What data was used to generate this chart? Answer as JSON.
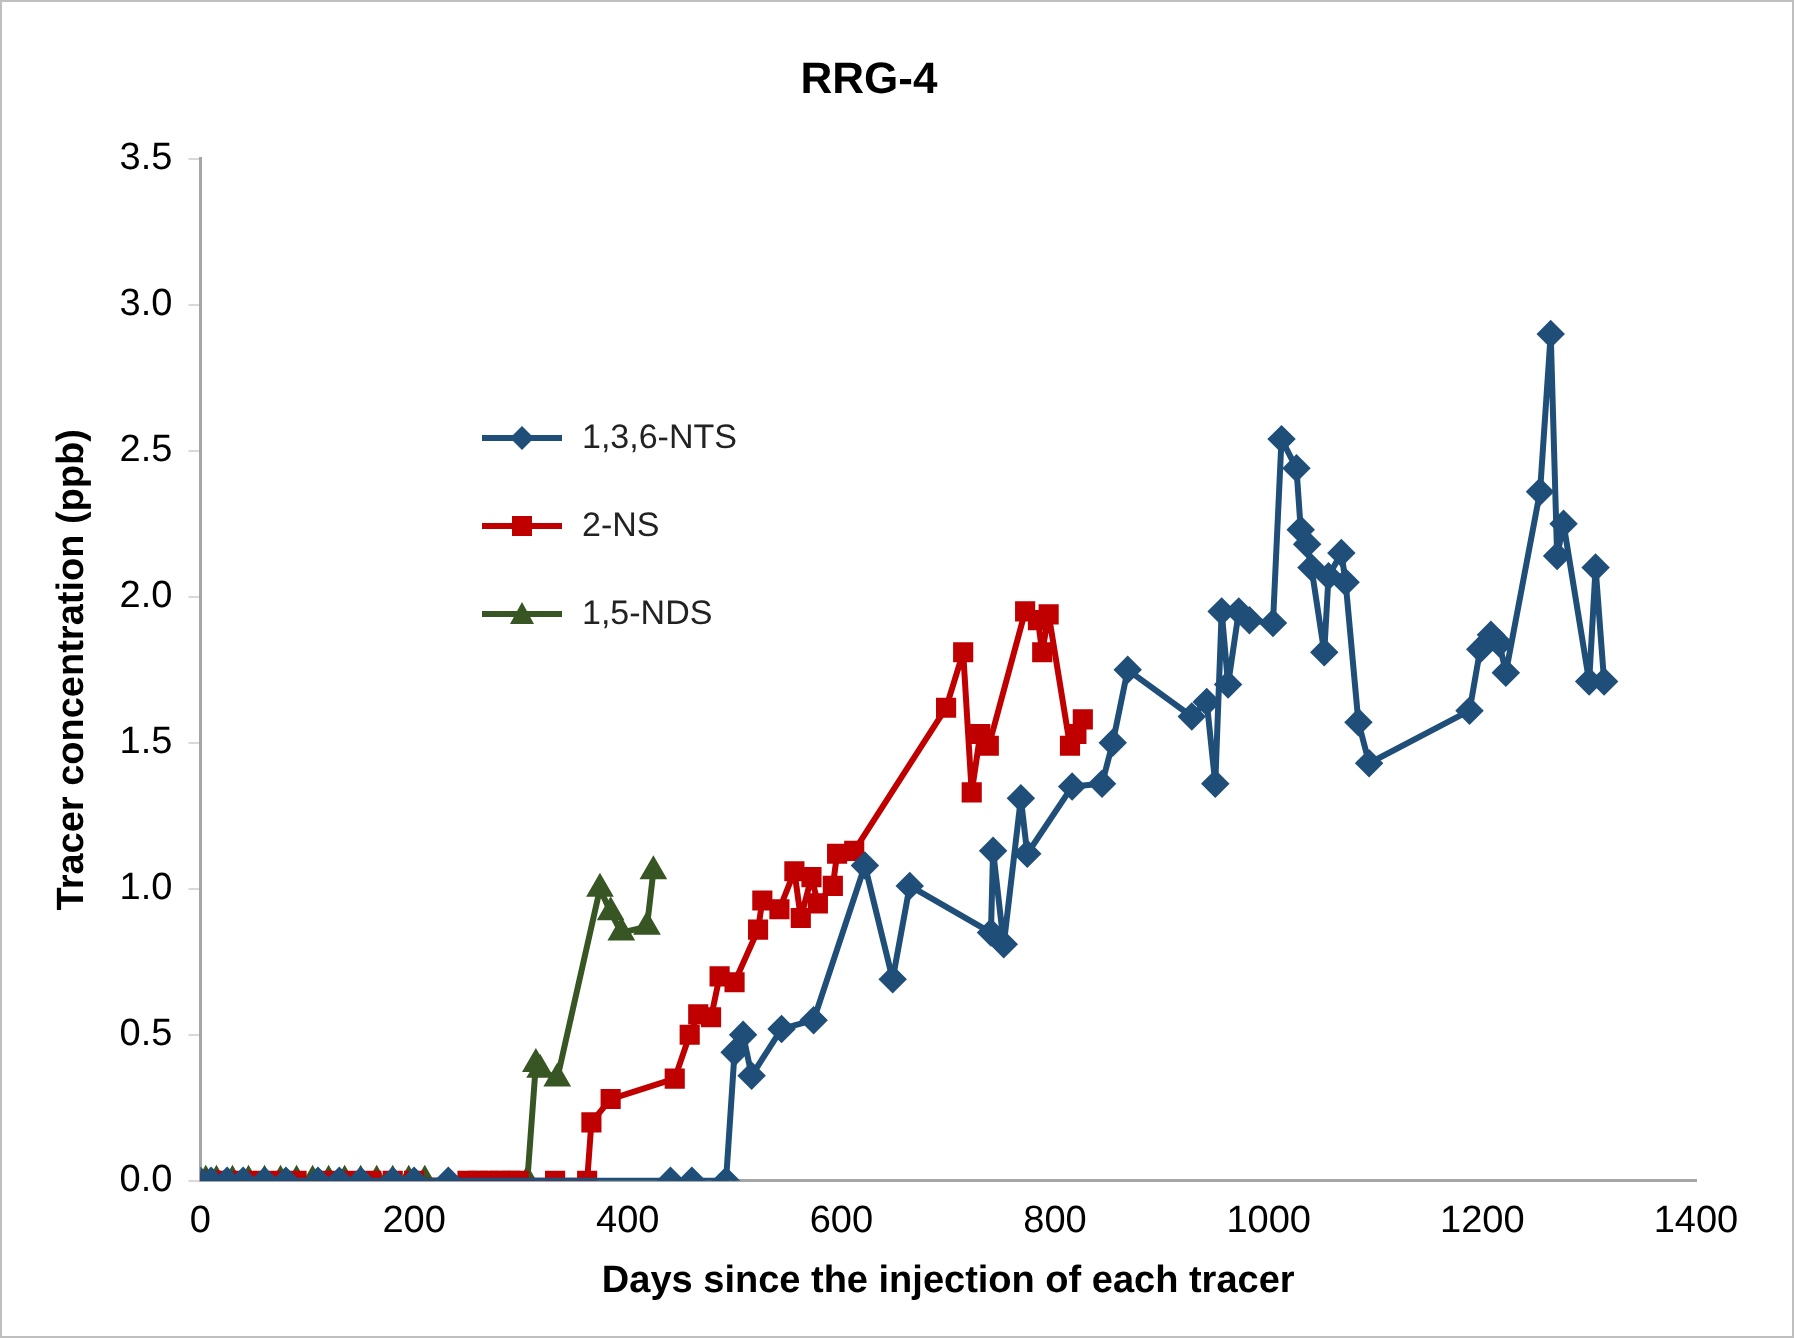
{
  "chart_data": {
    "type": "line",
    "title": "RRG-4",
    "xlabel": "Days since the injection of each tracer",
    "ylabel": "Tracer concentration (ppb)",
    "xlim": [
      0,
      1400
    ],
    "xticks": [
      0,
      200,
      400,
      600,
      800,
      1000,
      1200,
      1400
    ],
    "ylim": [
      0,
      3.5
    ],
    "yticks": [
      {
        "value": 0,
        "label": "0.0"
      },
      0.5,
      {
        "value": 1,
        "label": "1.0"
      },
      1.5,
      {
        "value": 2,
        "label": "2.0"
      },
      2.5,
      {
        "value": 3,
        "label": "3.0"
      },
      3.5
    ],
    "grid": false,
    "legend": "top left",
    "line_style": "solid",
    "series": [
      {
        "name": "1,3,6-NTS",
        "color": "#1f4e79",
        "marker": "diamond",
        "x": [
          0,
          10,
          25,
          40,
          60,
          80,
          110,
          130,
          150,
          180,
          200,
          232,
          440,
          460,
          492,
          500,
          508,
          516,
          544,
          574,
          622,
          648,
          664,
          740,
          742,
          752,
          768,
          774,
          816,
          844,
          854,
          868,
          928,
          942,
          950,
          956,
          962,
          972,
          982,
          1004,
          1012,
          1026,
          1030,
          1036,
          1040,
          1052,
          1056,
          1068,
          1072,
          1084,
          1094,
          1188,
          1198,
          1208,
          1216,
          1222,
          1254,
          1264,
          1270,
          1276,
          1300,
          1306,
          1314
        ],
        "values": [
          0,
          0,
          0,
          0,
          0,
          0,
          0,
          0,
          0,
          0,
          0,
          0,
          0,
          0,
          0,
          0.44,
          0.5,
          0.36,
          0.52,
          0.55,
          1.08,
          0.69,
          1.01,
          0.85,
          1.13,
          0.81,
          1.31,
          1.12,
          1.35,
          1.36,
          1.5,
          1.75,
          1.59,
          1.64,
          1.36,
          1.95,
          1.7,
          1.95,
          1.92,
          1.91,
          2.54,
          2.44,
          2.23,
          2.18,
          2.1,
          1.81,
          2.07,
          2.15,
          2.05,
          1.57,
          1.43,
          1.61,
          1.82,
          1.87,
          1.84,
          1.74,
          2.36,
          2.9,
          2.14,
          2.25,
          1.71,
          2.1,
          1.71
        ]
      },
      {
        "name": "2-NS",
        "color": "#c00000",
        "marker": "square",
        "x": [
          0,
          10,
          20,
          30,
          50,
          70,
          90,
          120,
          140,
          160,
          180,
          200,
          250,
          260,
          270,
          280,
          290,
          298,
          332,
          362,
          366,
          384,
          444,
          458,
          466,
          478,
          486,
          500,
          522,
          526,
          542,
          556,
          562,
          572,
          578,
          592,
          596,
          612,
          698,
          714,
          722,
          730,
          738,
          772,
          784,
          788,
          794,
          814,
          820,
          826
        ],
        "values": [
          0,
          0,
          0,
          0,
          0,
          0,
          0,
          0,
          0,
          0,
          0,
          0,
          0,
          0,
          0,
          0,
          0,
          0,
          0,
          0,
          0.2,
          0.28,
          0.35,
          0.5,
          0.57,
          0.56,
          0.7,
          0.68,
          0.86,
          0.96,
          0.93,
          1.06,
          0.9,
          1.04,
          0.95,
          1.01,
          1.12,
          1.13,
          1.62,
          1.81,
          1.33,
          1.53,
          1.49,
          1.95,
          1.92,
          1.81,
          1.94,
          1.49,
          1.53,
          1.58
        ]
      },
      {
        "name": "1,5-NDS",
        "color": "#375623",
        "marker": "triangle",
        "x": [
          5,
          15,
          30,
          45,
          60,
          75,
          90,
          105,
          120,
          135,
          150,
          165,
          180,
          195,
          210,
          306,
          314,
          318,
          334,
          374,
          384,
          394,
          418,
          424
        ],
        "values": [
          0,
          0,
          0,
          0,
          0,
          0,
          0,
          0,
          0,
          0,
          0,
          0,
          0,
          0,
          0,
          0,
          0.4,
          0.38,
          0.35,
          1.0,
          0.92,
          0.85,
          0.87,
          1.06
        ]
      }
    ]
  }
}
